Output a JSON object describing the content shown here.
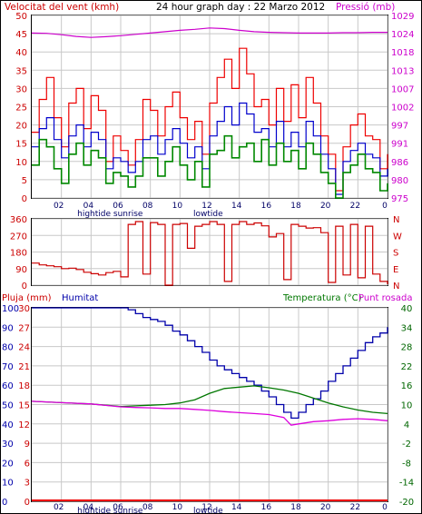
{
  "header": {
    "left_title": "Velocitat del vent (kmh)",
    "center_title": "24 hour graph day : 22 Marzo 2012",
    "right_title": "Pressió (mb)"
  },
  "colors": {
    "wind_max": "#ee0000",
    "wind_avg": "#0000cc",
    "wind_min": "#008800",
    "pressure": "#cc00cc",
    "direction": "#cc0000",
    "humidity": "#0000aa",
    "temperature": "#007700",
    "dewpoint": "#dd00dd",
    "rain": "#ee0000",
    "grid": "#c8c8c8",
    "axis_left_top": "#cc0000",
    "axis_right_top": "#cc00cc",
    "axis_rain": "#cc0000",
    "axis_humidity": "#0000aa",
    "axis_temp": "#006600",
    "axis_dew": "#cc00cc"
  },
  "time_labels": {
    "hours": [
      "02",
      "04",
      "06",
      "08",
      "10",
      "12",
      "14",
      "16",
      "18",
      "20",
      "22",
      "0"
    ],
    "events_top": [
      {
        "label": "hightide",
        "hour": 4.2
      },
      {
        "label": "sunrise",
        "hour": 6.5
      },
      {
        "label": "lowtide",
        "hour": 11.9
      }
    ],
    "events_bottom": [
      {
        "label": "hightide",
        "hour": 4.2
      },
      {
        "label": "sunrise",
        "hour": 6.5
      },
      {
        "label": "lowtide",
        "hour": 11.9
      }
    ]
  },
  "chart_data": [
    {
      "type": "line",
      "title": "24 hour graph day : 22 Marzo 2012",
      "xlabel": "",
      "ylabel": "Velocitat del vent (kmh)",
      "ylabel_right": "Pressió (mb)",
      "x_range_hours": [
        0,
        24
      ],
      "ylim": [
        0,
        50
      ],
      "yticks_left": [
        0,
        5,
        10,
        15,
        20,
        25,
        30,
        35,
        40,
        45,
        50
      ],
      "ylim_right": [
        975,
        1029
      ],
      "yticks_right": [
        "975",
        "980",
        "986",
        "991",
        "997",
        "1002",
        "1007",
        "1013",
        "1018",
        "1024",
        "1029"
      ],
      "grid": true,
      "series": [
        {
          "key": "wind_max",
          "hours": [
            0,
            0.5,
            1,
            1.5,
            2,
            2.5,
            3,
            3.5,
            4,
            4.5,
            5,
            5.5,
            6,
            6.5,
            7,
            7.5,
            8,
            8.5,
            9,
            9.5,
            10,
            10.5,
            11,
            11.5,
            12,
            12.5,
            13,
            13.5,
            14,
            14.5,
            15,
            15.5,
            16,
            16.5,
            17,
            17.5,
            18,
            18.5,
            19,
            19.5,
            20,
            20.5,
            21,
            21.5,
            22,
            22.5,
            23,
            23.5,
            24
          ],
          "values": [
            18,
            27,
            33,
            22,
            14,
            26,
            30,
            19,
            28,
            24,
            10,
            17,
            13,
            9,
            16,
            27,
            24,
            17,
            25,
            29,
            22,
            16,
            21,
            12,
            26,
            33,
            38,
            30,
            41,
            34,
            25,
            27,
            20,
            30,
            21,
            31,
            22,
            33,
            26,
            17,
            12,
            2,
            14,
            20,
            23,
            17,
            16,
            8,
            12
          ]
        },
        {
          "key": "wind_avg",
          "hours": [
            0,
            0.5,
            1,
            1.5,
            2,
            2.5,
            3,
            3.5,
            4,
            4.5,
            5,
            5.5,
            6,
            6.5,
            7,
            7.5,
            8,
            8.5,
            9,
            9.5,
            10,
            10.5,
            11,
            11.5,
            12,
            12.5,
            13,
            13.5,
            14,
            14.5,
            15,
            15.5,
            16,
            16.5,
            17,
            17.5,
            18,
            18.5,
            19,
            19.5,
            20,
            20.5,
            21,
            21.5,
            22,
            22.5,
            23,
            23.5,
            24
          ],
          "values": [
            14,
            19,
            22,
            16,
            11,
            17,
            20,
            14,
            18,
            16,
            8,
            11,
            10,
            7,
            10,
            16,
            17,
            12,
            16,
            19,
            15,
            11,
            14,
            8,
            17,
            21,
            25,
            20,
            26,
            23,
            18,
            19,
            14,
            21,
            14,
            18,
            14,
            21,
            17,
            12,
            8,
            1,
            10,
            13,
            15,
            12,
            11,
            6,
            8
          ]
        },
        {
          "key": "wind_min",
          "hours": [
            0,
            0.5,
            1,
            1.5,
            2,
            2.5,
            3,
            3.5,
            4,
            4.5,
            5,
            5.5,
            6,
            6.5,
            7,
            7.5,
            8,
            8.5,
            9,
            9.5,
            10,
            10.5,
            11,
            11.5,
            12,
            12.5,
            13,
            13.5,
            14,
            14.5,
            15,
            15.5,
            16,
            16.5,
            17,
            17.5,
            18,
            18.5,
            19,
            19.5,
            20,
            20.5,
            21,
            21.5,
            22,
            22.5,
            23,
            23.5,
            24
          ],
          "values": [
            9,
            16,
            14,
            8,
            4,
            12,
            15,
            9,
            13,
            11,
            4,
            7,
            6,
            3,
            6,
            11,
            11,
            6,
            10,
            14,
            9,
            5,
            10,
            3,
            12,
            13,
            17,
            11,
            14,
            15,
            10,
            16,
            9,
            15,
            10,
            13,
            8,
            15,
            12,
            7,
            4,
            0,
            7,
            9,
            12,
            8,
            7,
            2,
            4
          ]
        },
        {
          "key": "pressure",
          "axis": "right",
          "hours": [
            0,
            1,
            2,
            3,
            4,
            5,
            6,
            7,
            8,
            9,
            10,
            11,
            12,
            13,
            14,
            15,
            16,
            17,
            18,
            19,
            20,
            21,
            22,
            23,
            24
          ],
          "values": [
            1023.8,
            1023.7,
            1023.3,
            1022.8,
            1022.5,
            1022.7,
            1023.0,
            1023.4,
            1023.8,
            1024.2,
            1024.6,
            1024.9,
            1025.3,
            1025.1,
            1024.6,
            1024.2,
            1024.0,
            1023.9,
            1023.8,
            1023.8,
            1023.8,
            1023.9,
            1023.9,
            1024.0,
            1024.0
          ]
        }
      ]
    },
    {
      "type": "line",
      "title": "",
      "ylabel": "",
      "x_range_hours": [
        0,
        24
      ],
      "ylim": [
        0,
        360
      ],
      "yticks_left": [
        0,
        90,
        180,
        270,
        360
      ],
      "yticks_right": [
        "N",
        "E",
        "S",
        "W",
        "N"
      ],
      "grid": true,
      "series": [
        {
          "key": "direction",
          "hours": [
            0,
            0.5,
            1,
            1.5,
            2,
            2.5,
            3,
            3.5,
            4,
            4.5,
            5,
            5.5,
            6,
            6.5,
            7,
            7.5,
            8,
            8.5,
            9,
            9.5,
            10,
            10.5,
            11,
            11.5,
            12,
            12.5,
            13,
            13.5,
            14,
            14.5,
            15,
            15.5,
            16,
            16.5,
            17,
            17.5,
            18,
            18.5,
            19,
            19.5,
            20,
            20.5,
            21,
            21.5,
            22,
            22.5,
            23,
            23.5,
            24
          ],
          "values": [
            120,
            110,
            105,
            100,
            90,
            92,
            85,
            70,
            62,
            55,
            68,
            75,
            45,
            330,
            345,
            60,
            340,
            330,
            0,
            330,
            335,
            200,
            320,
            330,
            345,
            330,
            20,
            330,
            345,
            330,
            338,
            322,
            262,
            280,
            30,
            330,
            320,
            310,
            312,
            285,
            15,
            320,
            55,
            330,
            40,
            320,
            60,
            20,
            5
          ]
        }
      ]
    },
    {
      "type": "line",
      "title": "",
      "ylabel_parts": [
        "Pluja (mm)",
        "Humitat"
      ],
      "ylabel_right_parts": [
        "Temperatura (°C)",
        "Punt rosada"
      ],
      "x_range_hours": [
        0,
        24
      ],
      "ylim_humidity": [
        0,
        100
      ],
      "yticks_rain": [
        "0",
        "3",
        "6",
        "9",
        "12",
        "15",
        "18",
        "21",
        "24",
        "27",
        "30"
      ],
      "yticks_humidity": [
        "0",
        "10",
        "20",
        "30",
        "40",
        "50",
        "60",
        "70",
        "80",
        "90",
        "100"
      ],
      "ylim_temp": [
        -20,
        40
      ],
      "yticks_temp": [
        "-20",
        "-14",
        "-8",
        "-2",
        "4",
        "10",
        "16",
        "22",
        "28",
        "34",
        "40"
      ],
      "grid": true,
      "series": [
        {
          "key": "humidity",
          "name": "Humitat",
          "hours": [
            0,
            1,
            2,
            3,
            4,
            5,
            6,
            6.5,
            7,
            7.5,
            8,
            8.5,
            9,
            9.5,
            10,
            10.5,
            11,
            11.5,
            12,
            12.5,
            13,
            13.5,
            14,
            14.5,
            15,
            15.5,
            16,
            16.5,
            17,
            17.5,
            18,
            18.5,
            19,
            19.5,
            20,
            20.5,
            21,
            21.5,
            22,
            22.5,
            23,
            23.5,
            24
          ],
          "values": [
            100,
            100,
            100,
            100,
            100,
            100,
            100,
            99,
            97,
            95,
            94,
            93,
            91,
            88,
            86,
            83,
            80,
            77,
            73,
            70,
            68,
            66,
            64,
            62,
            60,
            57,
            54,
            50,
            46,
            43,
            46,
            50,
            53,
            57,
            62,
            66,
            70,
            74,
            78,
            82,
            85,
            87,
            90
          ]
        },
        {
          "key": "temperature",
          "name": "Temperatura (°C)",
          "hours": [
            0,
            2,
            4,
            6,
            7,
            8,
            9,
            10,
            11,
            12,
            13,
            14,
            15,
            16,
            17,
            18,
            19,
            20,
            21,
            22,
            23,
            24
          ],
          "values": [
            11,
            10.6,
            10.2,
            9.4,
            9.6,
            9.8,
            10.0,
            10.5,
            11.5,
            13.5,
            15.0,
            15.4,
            15.8,
            15.2,
            14.5,
            13.5,
            12.0,
            10.5,
            9.3,
            8.3,
            7.6,
            7.2
          ]
        },
        {
          "key": "dewpoint",
          "name": "Punt rosada",
          "hours": [
            0,
            2,
            4,
            6,
            7,
            8,
            9,
            10,
            11,
            12,
            13,
            14,
            15,
            16,
            17,
            17.5,
            18,
            19,
            20,
            21,
            22,
            23,
            24
          ],
          "values": [
            11,
            10.6,
            10.2,
            9.3,
            9.1,
            9.0,
            8.8,
            8.8,
            8.5,
            8.2,
            7.8,
            7.5,
            7.2,
            6.9,
            6.0,
            3.6,
            4.0,
            4.7,
            5.0,
            5.4,
            5.6,
            5.4,
            5.0
          ]
        },
        {
          "key": "rain",
          "name": "Pluja (mm)",
          "hours": [
            0,
            24
          ],
          "values": [
            0,
            0
          ]
        }
      ]
    }
  ]
}
